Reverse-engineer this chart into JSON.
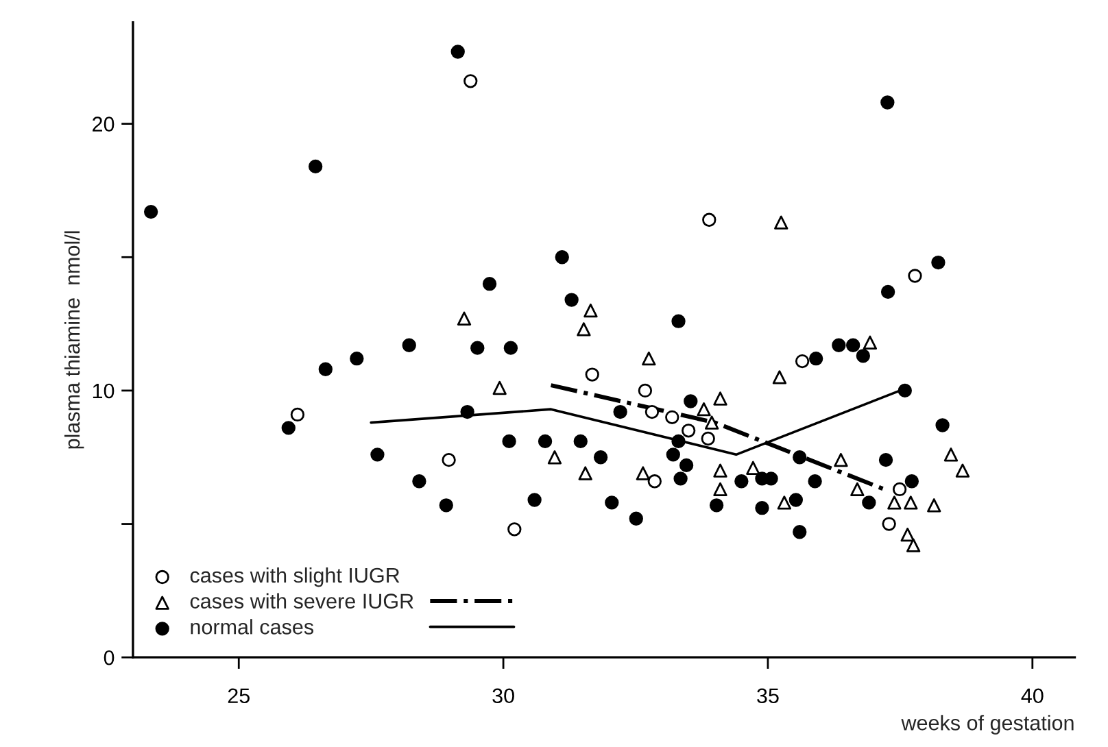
{
  "chart_data": {
    "type": "scatter",
    "xlabel": "weeks of gestation",
    "ylabel": "plasma thiamine  nmol/l",
    "xlim": [
      23,
      40.8
    ],
    "ylim": [
      0,
      23.8
    ],
    "xticks": [
      25,
      30,
      35,
      40
    ],
    "yticks": [
      0,
      {
        "value": 5,
        "label": null
      },
      10,
      {
        "value": 15,
        "label": null
      },
      20
    ],
    "grid": false,
    "legend": "bottom left",
    "series": [
      {
        "name": "cases with slight IUGR",
        "marker": "circle",
        "color": "#ffffff",
        "x": [
          29.38,
          26.11,
          28.97,
          30.21,
          33.89,
          37.78,
          35.65,
          31.68,
          32.68,
          32.81,
          33.19,
          33.5,
          33.87,
          32.86,
          37.49,
          37.29
        ],
        "values": [
          21.6,
          9.1,
          7.4,
          4.8,
          16.4,
          14.3,
          11.1,
          10.6,
          10.0,
          9.2,
          9.0,
          8.5,
          8.2,
          6.6,
          6.3,
          5.0
        ]
      },
      {
        "name": "cases with severe IUGR",
        "marker": "triangle",
        "color": "#ffffff",
        "x": [
          29.26,
          29.93,
          35.25,
          31.65,
          31.52,
          32.75,
          36.93,
          35.22,
          34.1,
          33.79,
          33.94,
          30.97,
          31.55,
          32.64,
          34.1,
          34.1,
          34.72,
          35.31,
          36.38,
          36.69,
          38.46,
          38.68,
          37.39,
          37.7,
          38.14,
          37.64,
          37.75
        ],
        "values": [
          12.7,
          10.1,
          16.3,
          13.0,
          12.3,
          11.2,
          11.8,
          10.5,
          9.7,
          9.3,
          8.8,
          7.5,
          6.9,
          6.9,
          7.0,
          6.3,
          7.1,
          5.8,
          7.4,
          6.3,
          7.6,
          7.0,
          5.8,
          5.8,
          5.7,
          4.6,
          4.2
        ]
      },
      {
        "name": "normal cases",
        "marker": "circle",
        "color": "#000000",
        "x": [
          23.34,
          26.45,
          29.14,
          29.74,
          28.22,
          27.23,
          26.64,
          29.51,
          30.14,
          29.32,
          25.94,
          27.62,
          28.41,
          28.92,
          30.11,
          30.79,
          30.59,
          37.26,
          31.11,
          31.29,
          33.31,
          38.22,
          37.27,
          35.91,
          36.34,
          36.61,
          36.8,
          37.59,
          33.54,
          32.21,
          31.46,
          31.84,
          33.31,
          33.21,
          33.46,
          33.35,
          34.5,
          34.89,
          35.06,
          35.6,
          35.89,
          37.23,
          38.3,
          37.72,
          32.05,
          32.51,
          34.03,
          34.89,
          35.53,
          35.6,
          36.91
        ],
        "values": [
          16.7,
          18.4,
          22.7,
          14.0,
          11.7,
          11.2,
          10.8,
          11.6,
          11.6,
          9.2,
          8.6,
          7.6,
          6.6,
          5.7,
          8.1,
          8.1,
          5.9,
          20.8,
          15.0,
          13.4,
          12.6,
          14.8,
          13.7,
          11.2,
          11.7,
          11.7,
          11.3,
          10.0,
          9.6,
          9.2,
          8.1,
          7.5,
          8.1,
          7.6,
          7.2,
          6.7,
          6.6,
          6.7,
          6.7,
          7.5,
          6.6,
          7.4,
          8.7,
          6.6,
          5.8,
          5.2,
          5.7,
          5.6,
          5.9,
          4.7,
          5.8
        ]
      },
      {
        "type": "line",
        "line_style": "dashdot",
        "color": "#000000",
        "x": [
          30.9,
          34.0,
          37.2
        ],
        "values": [
          10.2,
          8.8,
          6.3
        ]
      },
      {
        "type": "line",
        "line_style": "solid",
        "color": "#000000",
        "x": [
          27.5,
          30.9,
          34.4,
          37.5
        ],
        "values": [
          8.8,
          9.3,
          7.6,
          10.0
        ]
      }
    ]
  }
}
